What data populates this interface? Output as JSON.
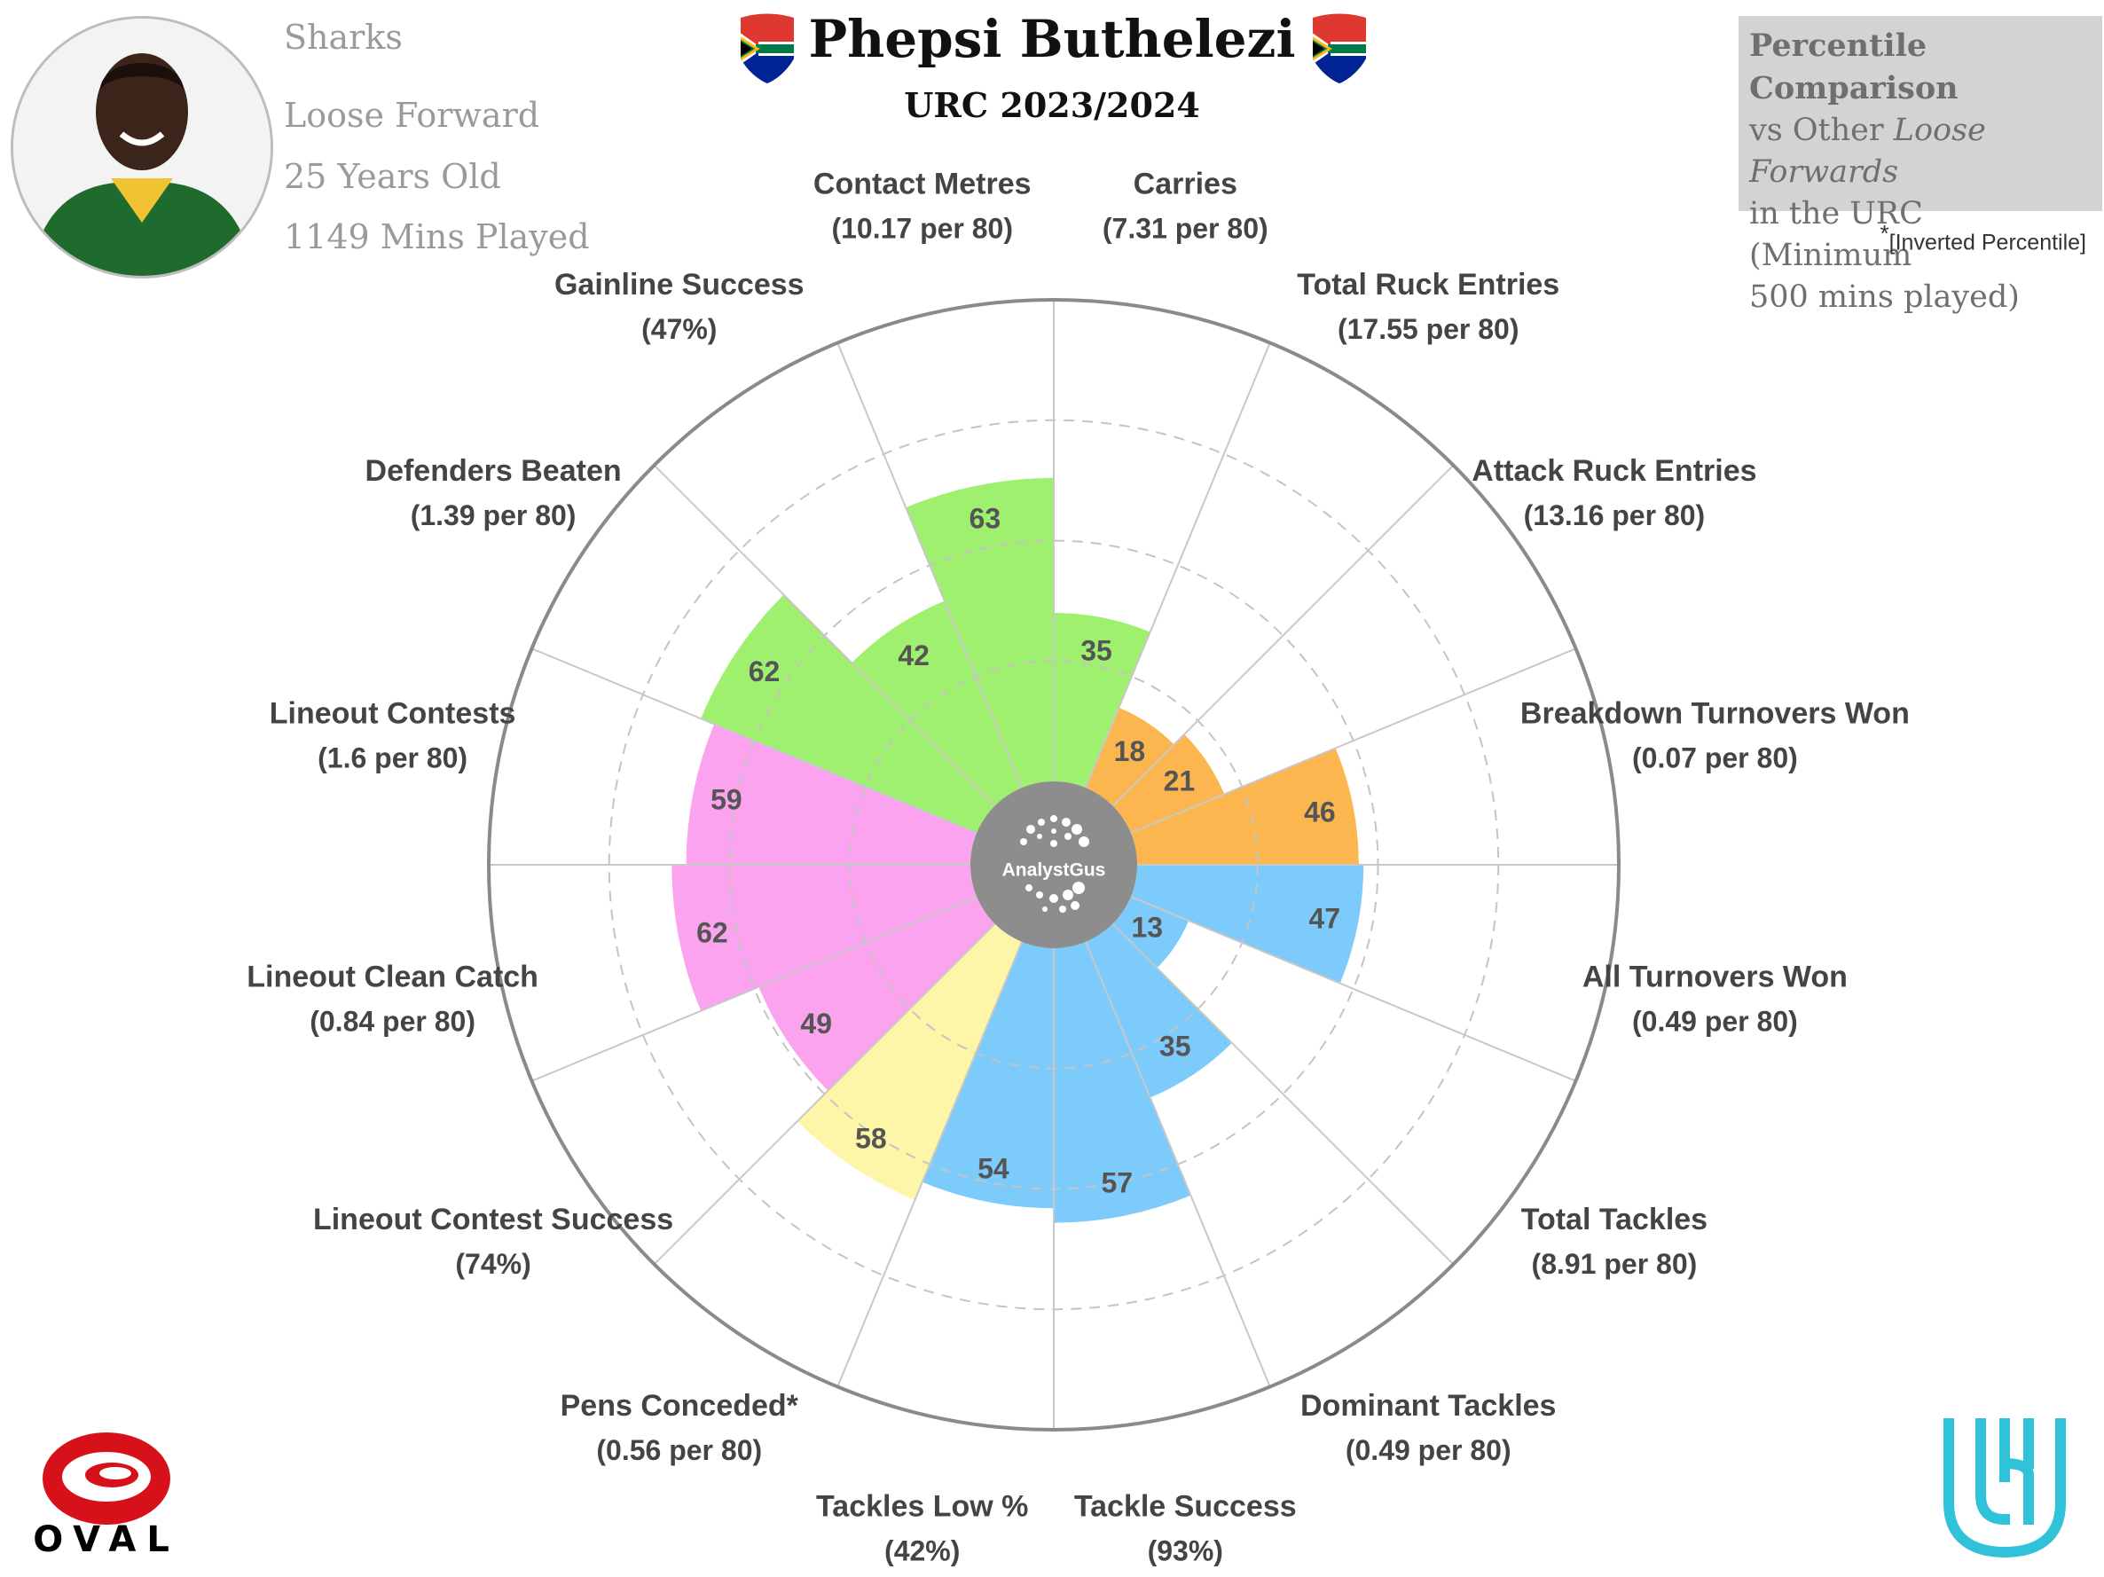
{
  "header": {
    "title": "Phepsi Buthelezi",
    "subtitle": "URC 2023/2024"
  },
  "player": {
    "club": "Sharks",
    "position": "Loose Forward",
    "age": "25 Years Old",
    "minutes": "1149 Mins Played"
  },
  "legend": {
    "line1": "Percentile Comparison",
    "line2_prefix": "vs Other ",
    "line2_em": "Loose Forwards",
    "line3": "in the URC (Minimum",
    "line4": "500 mins played)",
    "footnote_star": "*",
    "footnote": "[Inverted Percentile]"
  },
  "center_logo": "AnalystGus",
  "logos": {
    "oval": "OVAL",
    "urc": "URC"
  },
  "colors": {
    "attack": "#a0f070",
    "breakdown": "#fcb650",
    "defence": "#7dcbfb",
    "discipline": "#fdf5a8",
    "lineout": "#fba3ef",
    "center": "#8d8d8d",
    "rim": "#8a8a8a",
    "spoke": "#c8c8c8",
    "ring": "#c4c4c4"
  },
  "chart_data": {
    "type": "polar-bar",
    "scale": [
      0,
      100
    ],
    "rings": [
      25,
      50,
      75,
      100
    ],
    "categories": [
      {
        "label": "Carries",
        "stat": "(7.31 per 80)",
        "value": 35,
        "group": "attack"
      },
      {
        "label": "Total Ruck Entries",
        "stat": "(17.55 per 80)",
        "value": 18,
        "group": "breakdown"
      },
      {
        "label": "Attack Ruck Entries",
        "stat": "(13.16 per 80)",
        "value": 21,
        "group": "breakdown"
      },
      {
        "label": "Breakdown Turnovers Won",
        "stat": "(0.07 per 80)",
        "value": 46,
        "group": "breakdown"
      },
      {
        "label": "All Turnovers Won",
        "stat": "(0.49 per 80)",
        "value": 47,
        "group": "defence"
      },
      {
        "label": "Total Tackles",
        "stat": "(8.91 per 80)",
        "value": 13,
        "group": "defence"
      },
      {
        "label": "Dominant Tackles",
        "stat": "(0.49 per 80)",
        "value": 35,
        "group": "defence"
      },
      {
        "label": "Tackle Success",
        "stat": "(93%)",
        "value": 57,
        "group": "defence"
      },
      {
        "label": "Tackles Low %",
        "stat": "(42%)",
        "value": 54,
        "group": "defence"
      },
      {
        "label": "Pens Conceded*",
        "stat": "(0.56 per 80)",
        "value": 58,
        "group": "discipline"
      },
      {
        "label": "Lineout Contest Success",
        "stat": "(74%)",
        "value": 49,
        "group": "lineout"
      },
      {
        "label": "Lineout Clean Catch",
        "stat": "(0.84 per 80)",
        "value": 62,
        "group": "lineout"
      },
      {
        "label": "Lineout Contests",
        "stat": "(1.6 per 80)",
        "value": 59,
        "group": "lineout"
      },
      {
        "label": "Defenders Beaten",
        "stat": "(1.39 per 80)",
        "value": 62,
        "group": "attack"
      },
      {
        "label": "Gainline Success",
        "stat": "(47%)",
        "value": 42,
        "group": "attack"
      },
      {
        "label": "Contact Metres",
        "stat": "(10.17 per 80)",
        "value": 63,
        "group": "attack"
      }
    ]
  }
}
